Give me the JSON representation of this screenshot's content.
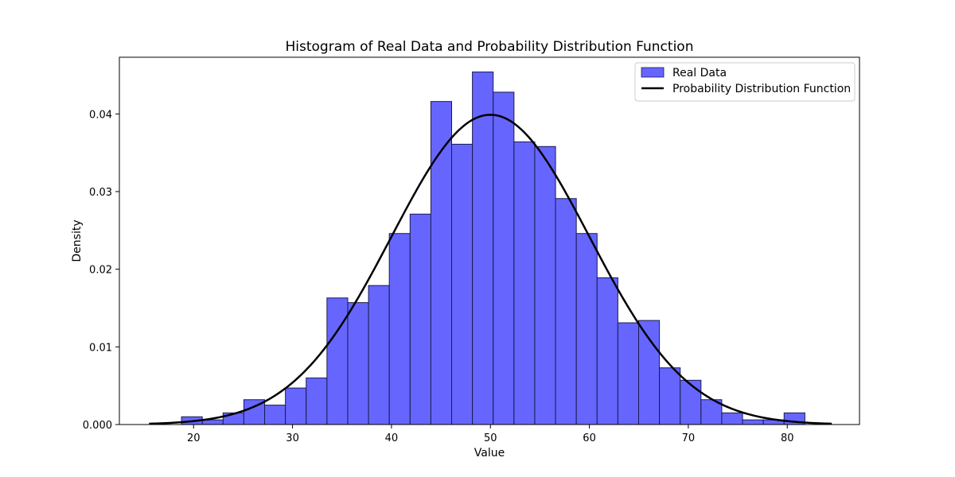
{
  "chart_data": {
    "type": "bar",
    "title": "Histogram of Real Data and Probability Distribution Function",
    "xlabel": "Value",
    "ylabel": "Density",
    "xlim": [
      12.5,
      87.3
    ],
    "ylim": [
      0.0,
      0.0473
    ],
    "xticks": [
      20,
      30,
      40,
      50,
      60,
      70,
      80
    ],
    "yticks": [
      0.0,
      0.01,
      0.02,
      0.03,
      0.04
    ],
    "ytick_labels": [
      "0.000",
      "0.01",
      "0.02",
      "0.03",
      "0.04"
    ],
    "grid": false,
    "legend_position": "top-right",
    "bin_edges": [
      18.78,
      20.88,
      22.98,
      25.08,
      27.18,
      29.28,
      31.38,
      33.48,
      35.58,
      37.68,
      39.78,
      41.88,
      43.98,
      46.08,
      48.18,
      50.28,
      52.38,
      54.48,
      56.58,
      58.68,
      60.78,
      62.88,
      64.98,
      67.08,
      69.18,
      71.28,
      73.38,
      75.48,
      77.58,
      79.68,
      81.78
    ],
    "series": [
      {
        "name": "Real Data",
        "kind": "histogram",
        "color": "#6666ff",
        "edge_color": "#1a1a4d",
        "values": [
          0.001,
          0.0006,
          0.0015,
          0.0032,
          0.0025,
          0.0047,
          0.006,
          0.0163,
          0.0157,
          0.0179,
          0.0246,
          0.0271,
          0.0416,
          0.0361,
          0.0454,
          0.0428,
          0.0364,
          0.0358,
          0.0291,
          0.0246,
          0.0189,
          0.0131,
          0.0134,
          0.0073,
          0.0057,
          0.0032,
          0.0015,
          0.0006,
          0.0006,
          0.0015
        ]
      },
      {
        "name": "Probability Distribution Function",
        "kind": "line",
        "color": "#000000",
        "mean": 50,
        "std": 10,
        "x_range": [
          15.5,
          84.5
        ]
      }
    ]
  }
}
